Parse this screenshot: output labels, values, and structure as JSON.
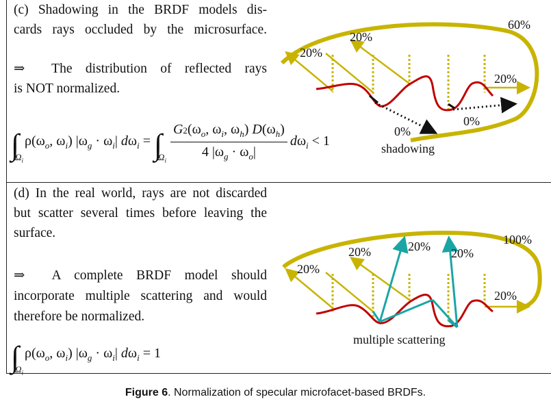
{
  "panel_c": {
    "line1": "(c) Shadowing in the BRDF models dis-",
    "line2": "cards rays occluded by the microsurface.",
    "arrow": "⇒",
    "line3": "The distribution of reflected rays",
    "line4": "is NOT normalized.",
    "equation_lhs": "ρ(ω",
    "equation_result": "< 1",
    "labels": {
      "left": "20%",
      "mid": "20%",
      "right": "20%",
      "top_right": "60%",
      "zero_a": "0%",
      "zero_b": "0%",
      "shadowing": "shadowing"
    }
  },
  "panel_d": {
    "line1": "(d) In the real world, rays are not discarded",
    "line2": "but scatter several times before leaving the",
    "line3": "surface.",
    "arrow": "⇒",
    "line4": "A complete BRDF model should",
    "line5": "incorporate multiple scattering and would",
    "line6": "therefore be normalized.",
    "equation_result": "= 1",
    "labels": {
      "left": "20%",
      "mid": "20%",
      "up1": "20%",
      "up2": "20%",
      "right": "20%",
      "top_right": "100%",
      "multiple": "multiple scattering"
    }
  },
  "caption": {
    "label": "Figure 6",
    "text": ". Normalization of specular microfacet-based BRDFs."
  },
  "colors": {
    "gold": "#c8b400",
    "red": "#c00000",
    "teal": "#1aa5a5",
    "black": "#111111"
  }
}
